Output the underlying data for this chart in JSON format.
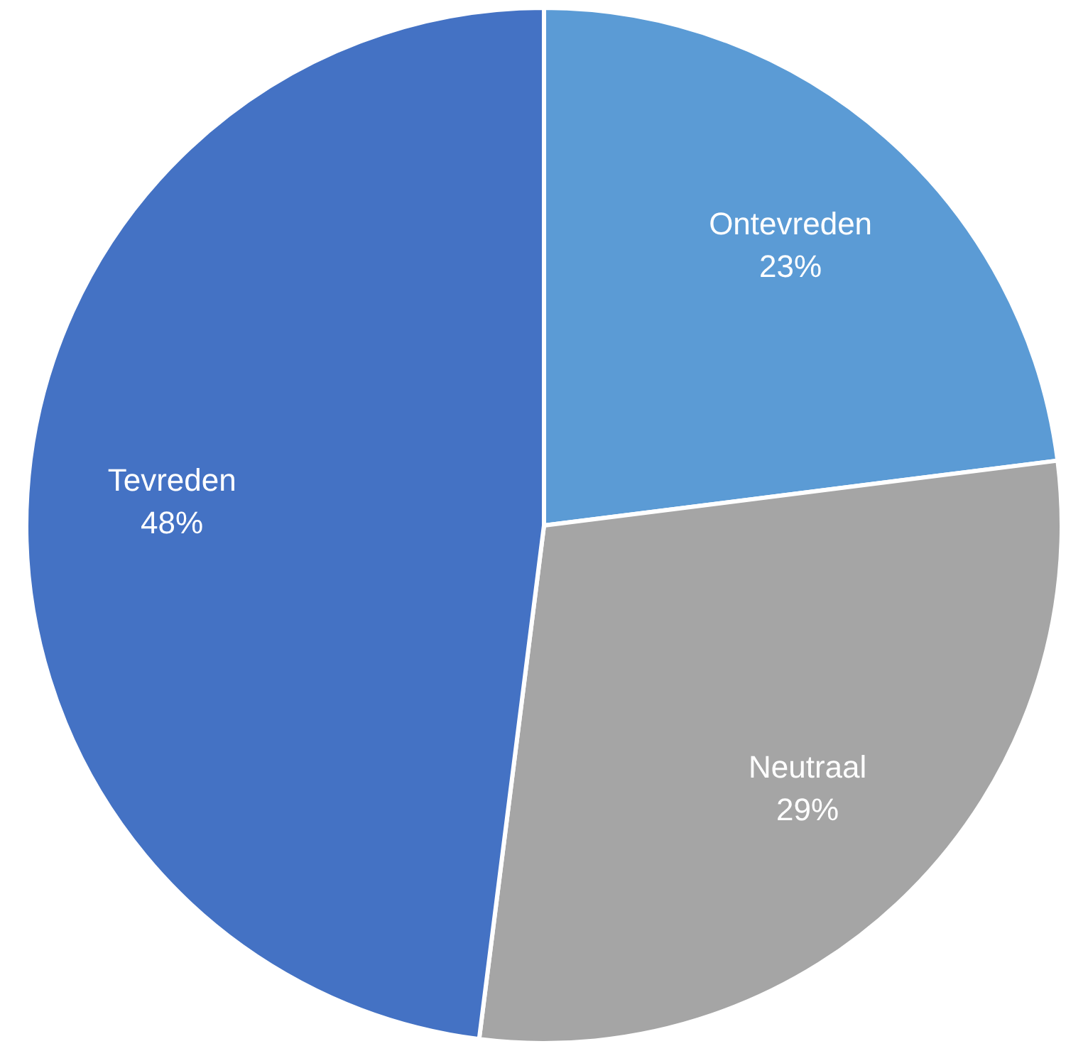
{
  "chart_data": {
    "type": "pie",
    "categories": [
      "Ontevreden",
      "Neutraal",
      "Tevreden"
    ],
    "values": [
      23,
      29,
      48
    ],
    "colors": [
      "#5b9bd5",
      "#a5a5a5",
      "#4472c4"
    ],
    "value_labels": [
      "23%",
      "29%",
      "48%"
    ],
    "legend": false
  }
}
